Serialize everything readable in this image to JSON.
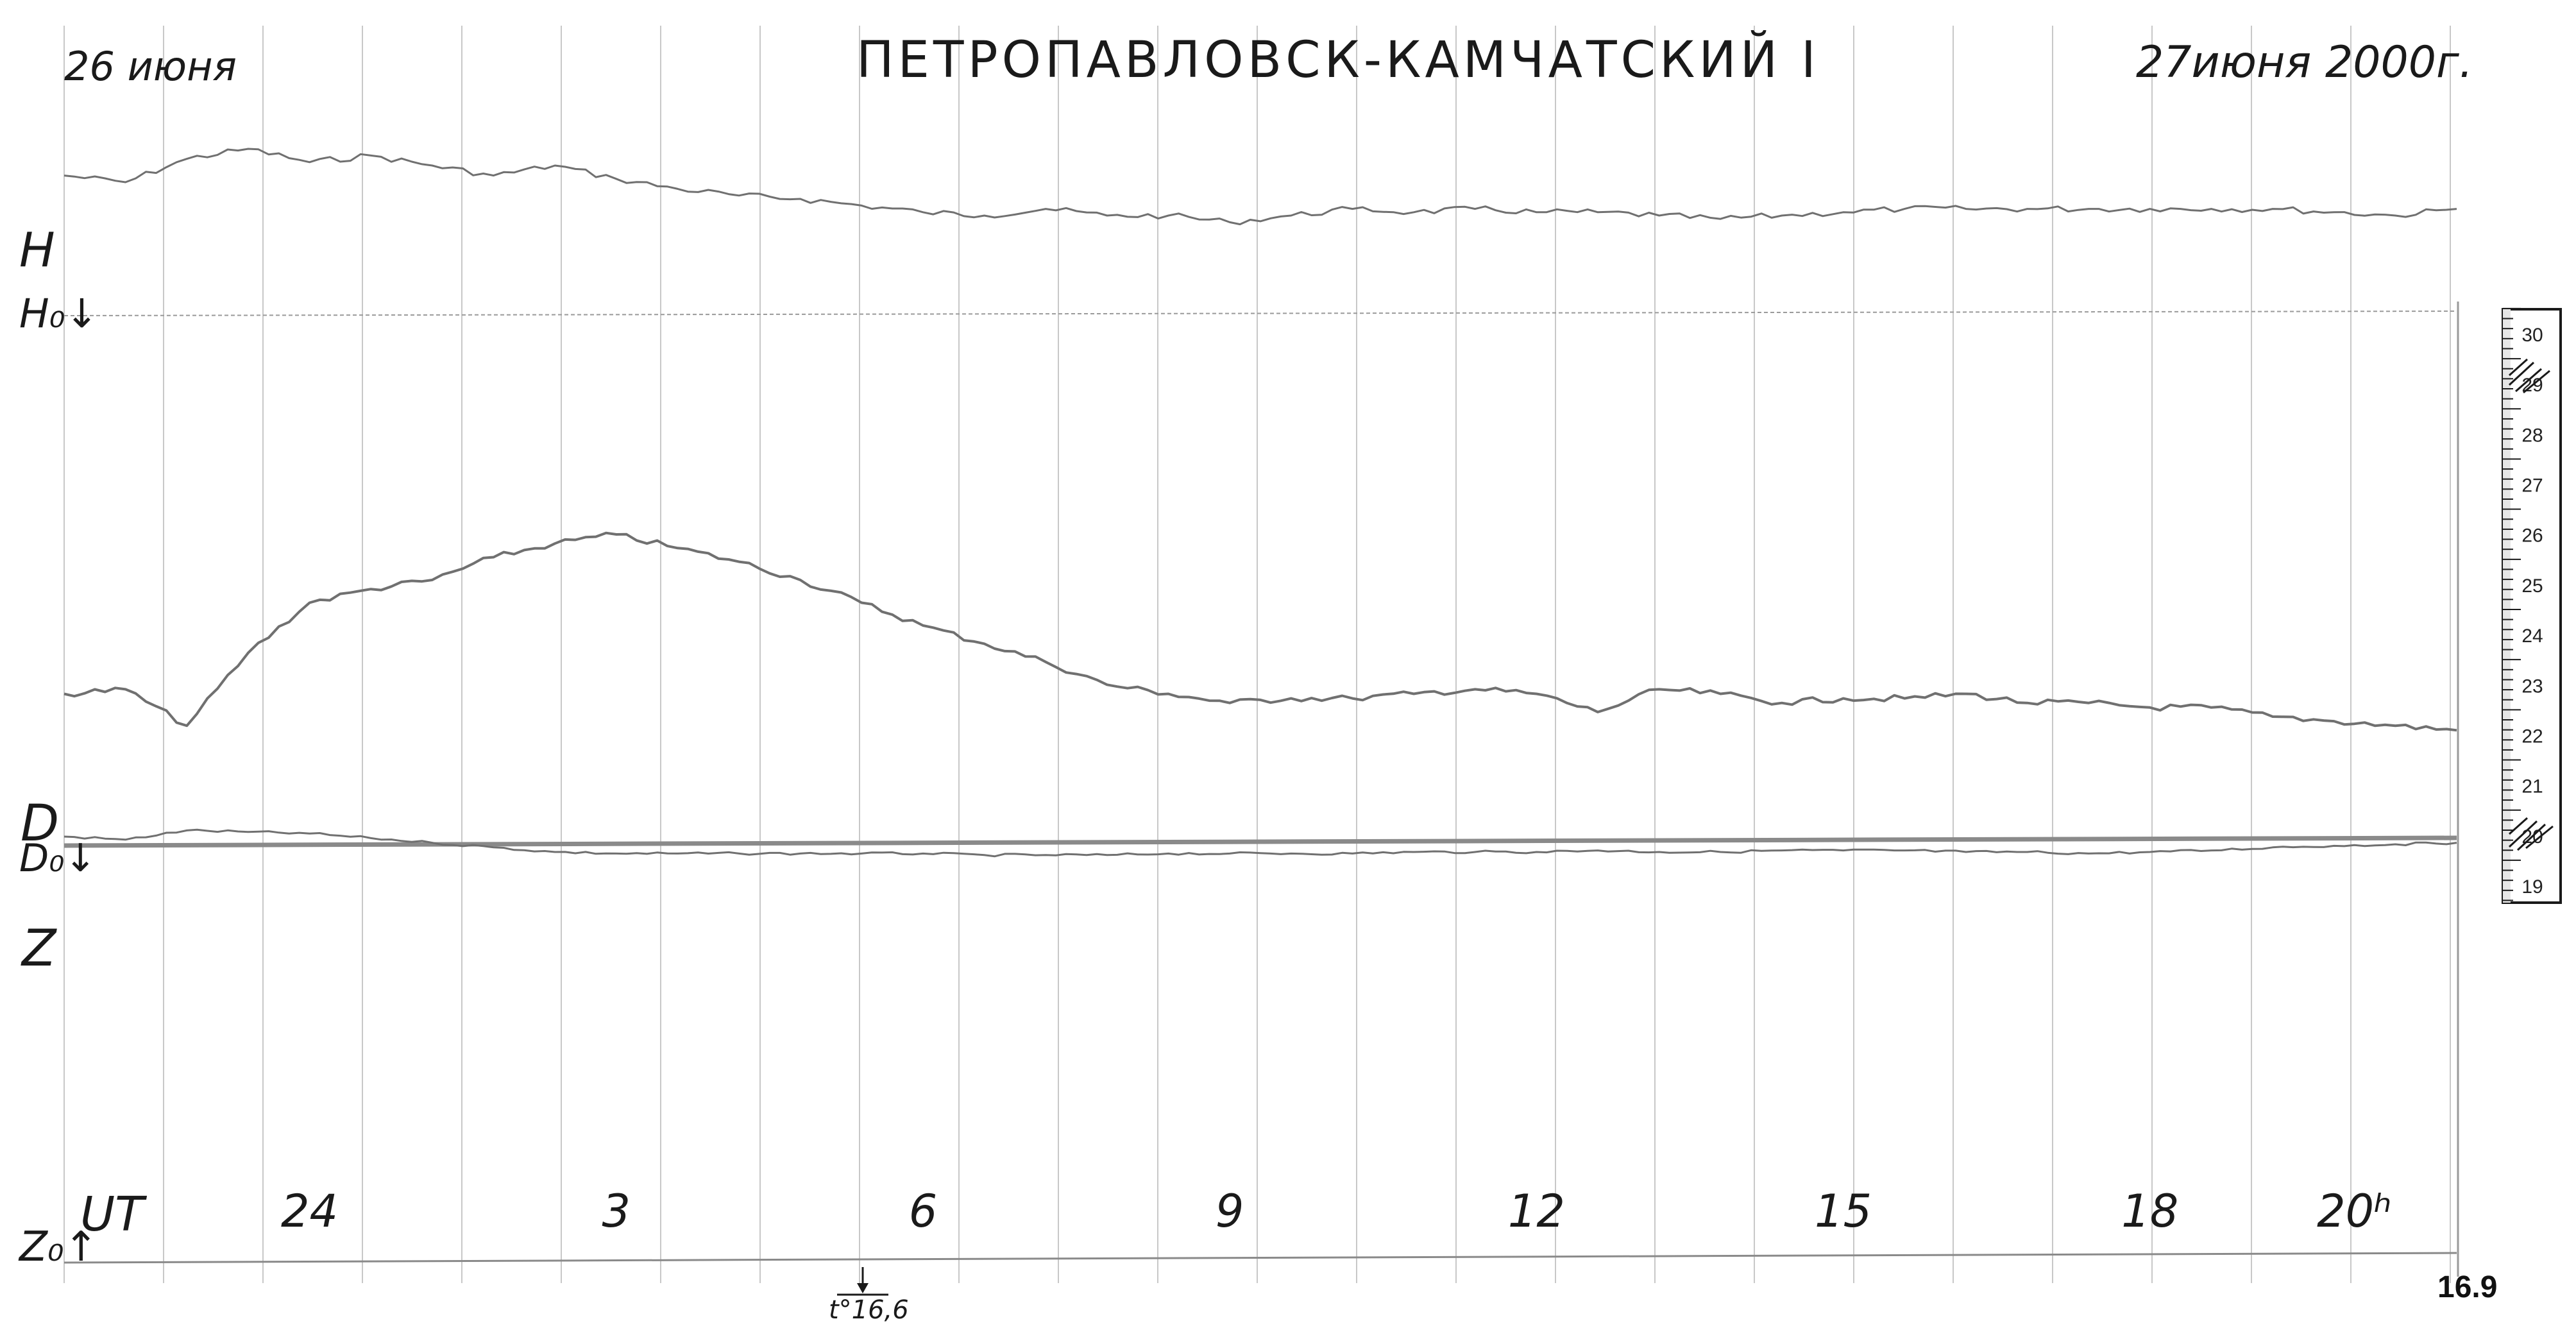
{
  "header": {
    "date_left": "26 июня",
    "station": "ПЕТРОПАВЛОВСК-КАМЧАТСКИЙ I",
    "date_right": "27июня 2000г."
  },
  "trace_labels": {
    "h": "H",
    "h_base": "H₀↓",
    "d": "D",
    "d_base": "D₀↓",
    "z": "Z",
    "z_base": "Z₀↑"
  },
  "time_axis": {
    "label": "UT",
    "ticks": [
      "24",
      "3",
      "6",
      "9",
      "12",
      "15",
      "18",
      "20ʰ"
    ]
  },
  "temperature_note": "t°16,6",
  "frame_number": "16.9",
  "colors": {
    "grid": "#c8c8c8",
    "trace": "#707070",
    "baseline_d": "#8a8a8a",
    "ink": "#1a1a1a"
  },
  "chart_data": {
    "type": "line",
    "title": "ПЕТРОПАВЛОВСК-КАМЧАТСКИЙ I",
    "xlabel": "UT",
    "x_tick_labels": [
      "24",
      "3",
      "6",
      "9",
      "12",
      "15",
      "18",
      "20ʰ"
    ],
    "x_tick_hours": [
      24,
      27,
      30,
      33,
      36,
      39,
      42,
      44
    ],
    "xlim": [
      21.6,
      45.0
    ],
    "ylim": [
      0,
      100
    ],
    "grid": true,
    "legend": "none",
    "x": [
      21.6,
      22.2,
      22.8,
      23.4,
      24.0,
      24.6,
      25.2,
      25.8,
      26.4,
      27.0,
      27.6,
      28.2,
      28.8,
      29.4,
      30.0,
      30.6,
      31.2,
      31.8,
      32.4,
      33.0,
      33.6,
      34.2,
      34.8,
      35.4,
      36.0,
      36.6,
      37.2,
      37.8,
      38.4,
      39.0,
      39.6,
      40.2,
      40.8,
      41.4,
      42.0,
      42.6,
      43.2,
      43.8,
      44.4,
      45.0
    ],
    "series": [
      {
        "name": "H",
        "values": [
          82,
          80,
          87,
          90,
          86,
          88,
          85,
          82,
          85,
          81,
          78,
          76,
          75,
          73,
          71,
          70,
          72,
          70,
          70,
          68,
          70,
          72,
          71,
          72,
          71,
          71,
          70,
          69,
          70,
          71,
          72,
          72,
          72,
          72,
          72,
          72,
          72,
          71,
          70,
          72
        ]
      },
      {
        "name": "D",
        "values": [
          35,
          36,
          28,
          44,
          55,
          58,
          60,
          65,
          68,
          70,
          67,
          64,
          60,
          55,
          50,
          46,
          42,
          37,
          35,
          33,
          34,
          34,
          35,
          36,
          35,
          31,
          36,
          35,
          33,
          34,
          34,
          35,
          33,
          33,
          32,
          32,
          30,
          29,
          28,
          27
        ]
      },
      {
        "name": "Z",
        "values": [
          10,
          12,
          6,
          7,
          8,
          11,
          14,
          17,
          20,
          21,
          21,
          21,
          21,
          21,
          21,
          22,
          22,
          22,
          21,
          21,
          21,
          21,
          20,
          20,
          20,
          19,
          20,
          20,
          19,
          19,
          19,
          20,
          20,
          21,
          20,
          19,
          17,
          16,
          15,
          14
        ]
      }
    ]
  },
  "scale_bar": {
    "labels": [
      "30",
      "29",
      "28",
      "27",
      "26",
      "25",
      "24",
      "23",
      "22",
      "21",
      "20",
      "19"
    ]
  }
}
